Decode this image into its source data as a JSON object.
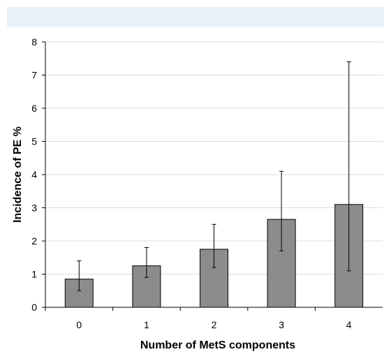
{
  "chart_data": {
    "type": "bar",
    "categories": [
      "0",
      "1",
      "2",
      "3",
      "4"
    ],
    "values": [
      0.85,
      1.25,
      1.75,
      2.65,
      3.1
    ],
    "error_low": [
      0.5,
      0.9,
      1.2,
      1.7,
      1.1
    ],
    "error_high": [
      1.4,
      1.8,
      2.5,
      4.1,
      7.4
    ],
    "title": "",
    "xlabel": "Number of MetS components",
    "ylabel": "Incidence of PE %",
    "ylim": [
      0,
      8
    ],
    "yticks": [
      "0",
      "1",
      "2",
      "3",
      "4",
      "5",
      "6",
      "7",
      "8"
    ],
    "grid": true,
    "colors": {
      "bar": "#8c8c8c",
      "bar_edge": "#000000",
      "grid": "#dcdcdc",
      "banner": "#e6f2f8"
    }
  }
}
